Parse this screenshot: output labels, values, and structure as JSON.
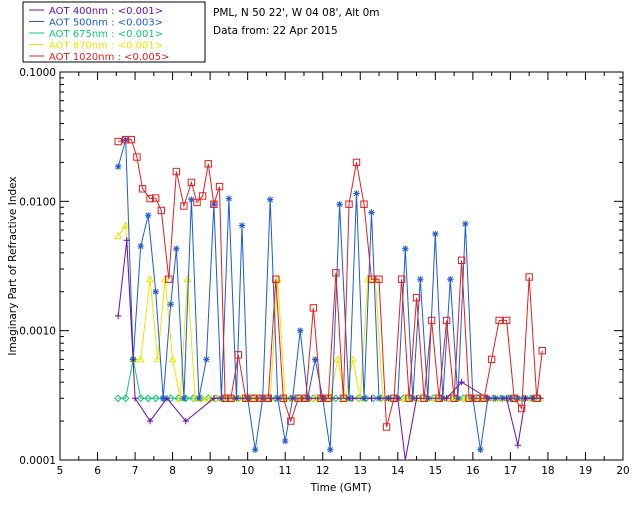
{
  "chart_data": {
    "type": "line",
    "title": "PML, N 50 22', W 04 08', Alt 0m",
    "subtitle": "Data from: 22 Apr 2015",
    "xlabel": "Time (GMT)",
    "ylabel": "Imaginary Part of Refractive Index",
    "xlim": [
      5,
      20
    ],
    "ylim": [
      0.0001,
      0.1
    ],
    "yscale": "log",
    "x_ticks": [
      "5",
      "6",
      "7",
      "8",
      "9",
      "10",
      "11",
      "12",
      "13",
      "14",
      "15",
      "16",
      "17",
      "18",
      "19",
      "20"
    ],
    "y_ticks": [
      "0.0001",
      "0.0010",
      "0.0100",
      "0.1000"
    ],
    "legend_position": "top-left outside",
    "series": [
      {
        "name": "AOT  400nm : <0.001>",
        "color": "#6a0dad",
        "marker": "plus",
        "x": [
          6.55,
          6.78,
          7.0,
          7.4,
          7.85,
          8.35,
          9.1,
          10.6,
          12.0,
          12.8,
          13.3,
          14.0,
          14.2,
          14.5,
          15.3,
          15.7,
          16.4,
          16.9,
          17.2,
          17.4,
          17.6,
          17.8
        ],
        "y": [
          0.0013,
          0.005,
          0.0003,
          0.0002,
          0.0003,
          0.0002,
          0.0003,
          0.0003,
          0.0003,
          0.0003,
          0.0003,
          0.0003,
          0.0001,
          0.0003,
          0.0003,
          0.0004,
          0.0003,
          0.0003,
          0.00013,
          0.0003,
          0.0003,
          0.0003
        ]
      },
      {
        "name": "AOT  500nm : <0.003>",
        "color": "#1e5ad8",
        "marker": "star",
        "x": [
          6.55,
          6.75,
          6.95,
          7.15,
          7.35,
          7.55,
          7.75,
          7.95,
          8.1,
          8.3,
          8.5,
          8.7,
          8.9,
          9.1,
          9.3,
          9.5,
          9.7,
          9.85,
          10.0,
          10.2,
          10.4,
          10.6,
          10.8,
          11.0,
          11.2,
          11.4,
          11.6,
          11.8,
          12.0,
          12.2,
          12.45,
          12.7,
          12.9,
          13.1,
          13.3,
          13.5,
          13.75,
          14.0,
          14.2,
          14.4,
          14.6,
          14.8,
          15.0,
          15.2,
          15.4,
          15.6,
          15.8,
          16.0,
          16.2,
          16.4,
          16.6,
          16.8,
          17.0,
          17.2,
          17.4,
          17.6
        ],
        "y": [
          0.0185,
          0.03,
          0.0006,
          0.0045,
          0.0078,
          0.002,
          0.0003,
          0.0016,
          0.0043,
          0.0003,
          0.0103,
          0.0003,
          0.0006,
          0.0095,
          0.0003,
          0.0105,
          0.0003,
          0.0065,
          0.0003,
          0.00012,
          0.0003,
          0.0103,
          0.0003,
          0.00014,
          0.0003,
          0.001,
          0.0003,
          0.0006,
          0.0003,
          0.00012,
          0.0095,
          0.0003,
          0.0115,
          0.0003,
          0.0082,
          0.0003,
          0.0003,
          0.0003,
          0.0043,
          0.0003,
          0.0025,
          0.0003,
          0.0056,
          0.0003,
          0.0025,
          0.0003,
          0.0067,
          0.0003,
          0.00012,
          0.0003,
          0.0003,
          0.0003,
          0.0003,
          0.0003,
          0.0003,
          0.0003
        ]
      },
      {
        "name": "AOT  675nm : <0.001>",
        "color": "#14c878",
        "marker": "diamond",
        "x": [
          6.55,
          6.75,
          6.95,
          7.15,
          7.35,
          7.55,
          7.75,
          7.95,
          8.15,
          8.35,
          8.55,
          8.75,
          8.95,
          9.15,
          9.35,
          9.55,
          9.75,
          9.95,
          10.15,
          10.35,
          10.55,
          10.75,
          10.95,
          11.15,
          11.35,
          11.55,
          11.75,
          11.95,
          12.15,
          12.35,
          12.55,
          12.75,
          12.95,
          13.15,
          13.35,
          13.55,
          13.75,
          13.95,
          14.15,
          14.35,
          14.55,
          14.75,
          14.95,
          15.15,
          15.35,
          15.55,
          15.75,
          15.95,
          16.15,
          16.35,
          16.55,
          16.75,
          16.95,
          17.15,
          17.35,
          17.55,
          17.75
        ],
        "y": [
          0.0003,
          0.0003,
          0.0006,
          0.0003,
          0.0003,
          0.0003,
          0.0003,
          0.0003,
          0.0003,
          0.0003,
          0.0003,
          0.0003,
          0.0003,
          0.0003,
          0.0003,
          0.0003,
          0.0003,
          0.0003,
          0.0003,
          0.0003,
          0.0003,
          0.0003,
          0.0003,
          0.0003,
          0.0003,
          0.0003,
          0.0003,
          0.0003,
          0.0003,
          0.0003,
          0.0003,
          0.0003,
          0.0003,
          0.0003,
          0.0003,
          0.0003,
          0.0003,
          0.0003,
          0.0003,
          0.0003,
          0.0003,
          0.0003,
          0.0003,
          0.0003,
          0.0003,
          0.0003,
          0.0003,
          0.0003,
          0.0003,
          0.0003,
          0.0003,
          0.0003,
          0.0003,
          0.0003,
          0.0003,
          0.0003,
          0.0003
        ]
      },
      {
        "name": "AOT  870nm : <0.001>",
        "color": "#e8e800",
        "marker": "triangle",
        "x": [
          6.55,
          6.75,
          6.95,
          7.15,
          7.4,
          7.6,
          7.8,
          8.0,
          8.2,
          8.4,
          8.6,
          8.8,
          9.0,
          9.2,
          9.4,
          9.6,
          9.8,
          10.0,
          10.2,
          10.4,
          10.6,
          10.8,
          11.0,
          11.2,
          11.4,
          11.6,
          11.8,
          12.0,
          12.2,
          12.4,
          12.6,
          12.8,
          13.0,
          13.2,
          13.4,
          13.6,
          13.8,
          14.0,
          14.2,
          14.4,
          14.6,
          14.8,
          15.0,
          15.2,
          15.4,
          15.6,
          15.8,
          16.0,
          16.2,
          16.4,
          16.6,
          16.8,
          17.0,
          17.2,
          17.4,
          17.6,
          17.8
        ],
        "y": [
          0.0054,
          0.0065,
          0.0006,
          0.0006,
          0.0025,
          0.0006,
          0.0025,
          0.0006,
          0.0003,
          0.0025,
          0.0003,
          0.0003,
          0.0003,
          0.0003,
          0.0003,
          0.0003,
          0.0003,
          0.0003,
          0.0003,
          0.0003,
          0.0003,
          0.0025,
          0.0003,
          0.0003,
          0.0003,
          0.0003,
          0.0003,
          0.0003,
          0.0003,
          0.0006,
          0.0003,
          0.0006,
          0.0003,
          0.0025,
          0.0025,
          0.0003,
          0.0003,
          0.0003,
          0.0003,
          0.0003,
          0.0003,
          0.0003,
          0.0003,
          0.0003,
          0.0003,
          0.0003,
          0.0003,
          0.0003,
          0.0003,
          0.0003,
          0.0003,
          0.0003,
          0.0003,
          0.0003,
          0.0003,
          0.0003,
          0.0003
        ]
      },
      {
        "name": "AOT 1020nm : <0.005>",
        "color": "#e02020",
        "marker": "square",
        "x": [
          6.55,
          6.75,
          6.9,
          7.05,
          7.2,
          7.4,
          7.55,
          7.7,
          7.9,
          8.1,
          8.3,
          8.5,
          8.65,
          8.8,
          8.95,
          9.1,
          9.25,
          9.4,
          9.55,
          9.75,
          9.95,
          10.15,
          10.35,
          10.55,
          10.75,
          10.95,
          11.15,
          11.35,
          11.55,
          11.75,
          11.95,
          12.15,
          12.35,
          12.55,
          12.7,
          12.9,
          13.1,
          13.3,
          13.5,
          13.7,
          13.9,
          14.1,
          14.3,
          14.5,
          14.7,
          14.9,
          15.1,
          15.3,
          15.5,
          15.7,
          15.9,
          16.1,
          16.3,
          16.5,
          16.7,
          16.9,
          17.1,
          17.3,
          17.5,
          17.7,
          17.85
        ],
        "y": [
          0.029,
          0.03,
          0.03,
          0.022,
          0.0125,
          0.0105,
          0.0106,
          0.0085,
          0.0025,
          0.017,
          0.0092,
          0.014,
          0.0098,
          0.011,
          0.0195,
          0.0095,
          0.013,
          0.0003,
          0.0003,
          0.00065,
          0.0003,
          0.0003,
          0.0003,
          0.0003,
          0.0025,
          0.0003,
          0.0002,
          0.0003,
          0.0003,
          0.0015,
          0.0003,
          0.0003,
          0.0028,
          0.0003,
          0.0095,
          0.02,
          0.0095,
          0.0025,
          0.0025,
          0.00018,
          0.0003,
          0.0025,
          0.0003,
          0.0018,
          0.0003,
          0.0012,
          0.0003,
          0.0012,
          0.0003,
          0.0035,
          0.0003,
          0.0003,
          0.0003,
          0.0006,
          0.0012,
          0.0012,
          0.0003,
          0.00025,
          0.0026,
          0.0003,
          0.0007
        ]
      }
    ]
  }
}
